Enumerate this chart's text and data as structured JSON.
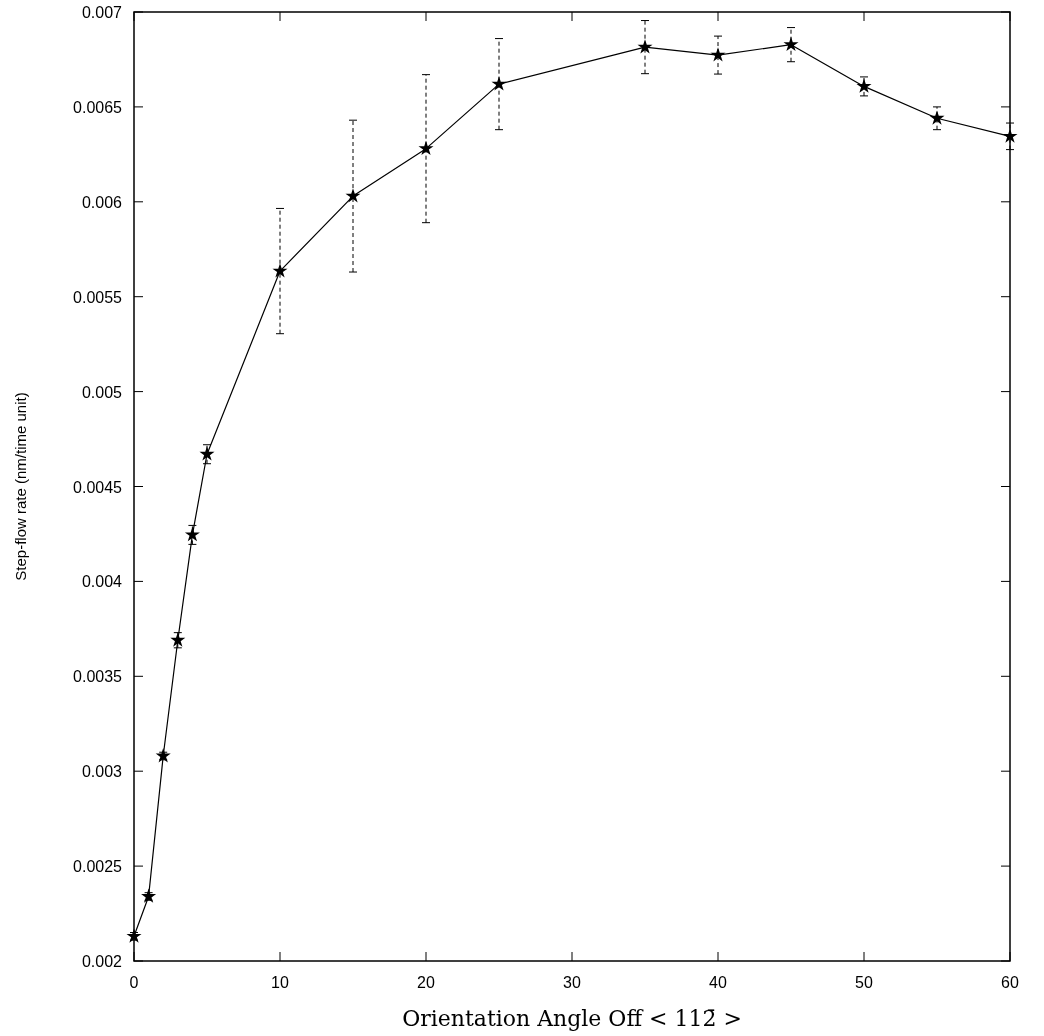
{
  "chart_data": {
    "type": "line",
    "xlabel": "Orientation Angle Off < 112̄ >",
    "ylabel": "Step-flow rate (nm/time unit)",
    "x": [
      0,
      1,
      2,
      3,
      4,
      5,
      10,
      15,
      20,
      25,
      35,
      40,
      45,
      50,
      55,
      60
    ],
    "series": [
      {
        "color": "#000000",
        "values": [
          0.00213,
          0.00234,
          0.00308,
          0.00369,
          0.004245,
          0.00467,
          0.005635,
          0.00603,
          0.00628,
          0.00662,
          0.006815,
          0.006773,
          0.006828,
          0.006608,
          0.00644,
          0.006345
        ],
        "errors": [
          2e-05,
          2e-05,
          2e-05,
          4e-05,
          5e-05,
          5e-05,
          0.00033,
          0.0004,
          0.00039,
          0.00024,
          0.00014,
          0.0001,
          9e-05,
          5e-05,
          6e-05,
          7e-05
        ]
      }
    ],
    "xlim": [
      0,
      60
    ],
    "xticks": [
      0,
      10,
      20,
      30,
      40,
      50,
      60
    ],
    "ylim": [
      0.002,
      0.007
    ],
    "yticks": [
      0.002,
      0.0025,
      0.003,
      0.0035,
      0.004,
      0.0045,
      0.005,
      0.0055,
      0.006,
      0.0065,
      0.007
    ],
    "marker": "star",
    "line_style": "solid",
    "grid": false
  }
}
